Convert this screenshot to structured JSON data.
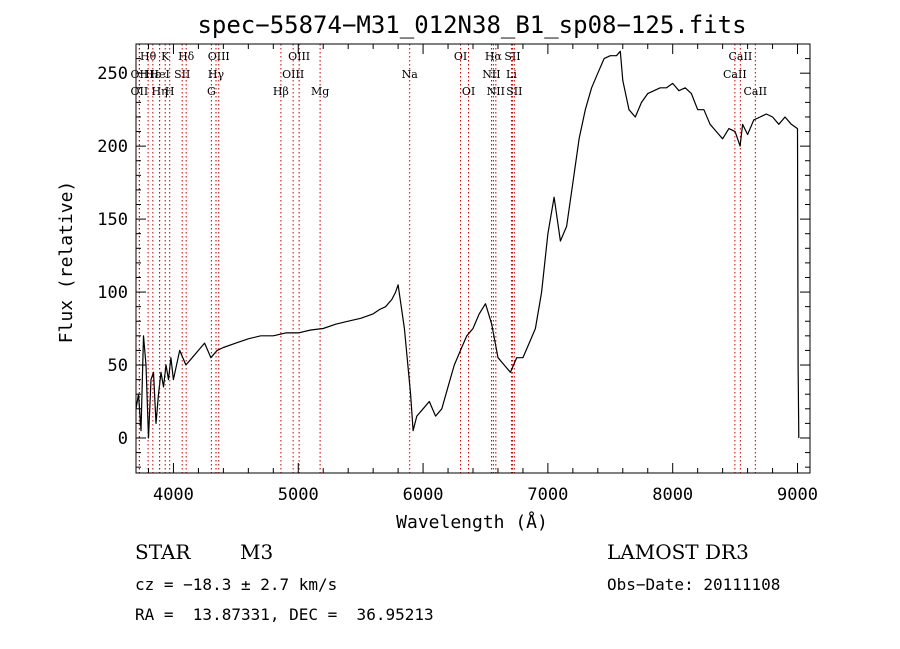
{
  "chart_data": {
    "type": "line",
    "title": "spec−55874−M31_012N38_B1_sp08−125.fits",
    "xlabel": "Wavelength (Å)",
    "ylabel": "Flux (relative)",
    "xlim": [
      3700,
      9100
    ],
    "ylim": [
      -24,
      270
    ],
    "x_ticks": [
      4000,
      5000,
      6000,
      7000,
      8000,
      9000
    ],
    "y_ticks": [
      0,
      50,
      100,
      150,
      200,
      250
    ],
    "grid": false,
    "series": [
      {
        "color": "#000000",
        "x": [
          3700,
          3720,
          3740,
          3760,
          3780,
          3800,
          3820,
          3840,
          3860,
          3880,
          3900,
          3920,
          3940,
          3960,
          3980,
          4000,
          4050,
          4100,
          4150,
          4200,
          4250,
          4300,
          4350,
          4400,
          4500,
          4600,
          4700,
          4800,
          4900,
          5000,
          5100,
          5200,
          5300,
          5400,
          5500,
          5600,
          5650,
          5700,
          5750,
          5780,
          5800,
          5850,
          5900,
          5920,
          5950,
          6000,
          6050,
          6100,
          6150,
          6200,
          6250,
          6300,
          6350,
          6400,
          6450,
          6500,
          6550,
          6600,
          6650,
          6700,
          6750,
          6800,
          6850,
          6900,
          6950,
          7000,
          7050,
          7100,
          7150,
          7200,
          7250,
          7300,
          7350,
          7400,
          7450,
          7500,
          7550,
          7580,
          7600,
          7650,
          7700,
          7750,
          7800,
          7850,
          7900,
          7950,
          8000,
          8050,
          8100,
          8150,
          8200,
          8250,
          8300,
          8350,
          8400,
          8450,
          8500,
          8540,
          8560,
          8600,
          8650,
          8700,
          8750,
          8800,
          8850,
          8900,
          8950,
          9000,
          9005,
          9010
        ],
        "values": [
          20,
          30,
          5,
          70,
          50,
          0,
          40,
          45,
          10,
          30,
          45,
          35,
          50,
          40,
          55,
          40,
          60,
          50,
          55,
          60,
          65,
          55,
          60,
          62,
          65,
          68,
          70,
          70,
          72,
          72,
          74,
          75,
          78,
          80,
          82,
          85,
          88,
          90,
          95,
          100,
          105,
          75,
          30,
          5,
          15,
          20,
          25,
          15,
          20,
          35,
          50,
          60,
          70,
          75,
          85,
          92,
          78,
          55,
          50,
          45,
          55,
          55,
          65,
          75,
          100,
          140,
          165,
          135,
          145,
          175,
          205,
          225,
          240,
          250,
          260,
          262,
          262,
          265,
          245,
          225,
          220,
          230,
          236,
          238,
          240,
          240,
          243,
          238,
          240,
          236,
          225,
          225,
          215,
          210,
          205,
          212,
          210,
          200,
          215,
          208,
          218,
          220,
          222,
          220,
          215,
          220,
          215,
          212,
          50,
          0
        ]
      }
    ],
    "line_markers": [
      {
        "label": "Hθ",
        "x": 3797,
        "row": 0
      },
      {
        "label": "OII",
        "x": 3727,
        "row": 1
      },
      {
        "label": "OII",
        "x": 3727,
        "row": 2
      },
      {
        "label": "Hε",
        "x": 3835,
        "row": 1
      },
      {
        "label": "Hη",
        "x": 3889,
        "row": 2
      },
      {
        "label": "K",
        "x": 3934,
        "row": 0
      },
      {
        "label": "H",
        "x": 3970,
        "row": 2
      },
      {
        "label": "HeI",
        "x": 3889,
        "row": 1
      },
      {
        "label": "SII",
        "x": 4070,
        "row": 1
      },
      {
        "label": "Hδ",
        "x": 4102,
        "row": 0
      },
      {
        "label": "OIII",
        "x": 4363,
        "row": 0
      },
      {
        "label": "Hγ",
        "x": 4341,
        "row": 1
      },
      {
        "label": "G",
        "x": 4304,
        "row": 2
      },
      {
        "label": "Hβ",
        "x": 4861,
        "row": 2
      },
      {
        "label": "OIII",
        "x": 5007,
        "row": 0
      },
      {
        "label": "OIII",
        "x": 4959,
        "row": 1
      },
      {
        "label": "Mg",
        "x": 5175,
        "row": 2
      },
      {
        "label": "Na",
        "x": 5893,
        "row": 1
      },
      {
        "label": "OI",
        "x": 6300,
        "row": 0
      },
      {
        "label": "OI",
        "x": 6364,
        "row": 2
      },
      {
        "label": "Hα",
        "x": 6563,
        "row": 0
      },
      {
        "label": "NII",
        "x": 6548,
        "row": 1
      },
      {
        "label": "NII",
        "x": 6583,
        "row": 2
      },
      {
        "label": "SII",
        "x": 6716,
        "row": 0
      },
      {
        "label": "Li",
        "x": 6708,
        "row": 1
      },
      {
        "label": "SII",
        "x": 6731,
        "row": 2
      },
      {
        "label": "CaII",
        "x": 8542,
        "row": 0
      },
      {
        "label": "CaII",
        "x": 8498,
        "row": 1
      },
      {
        "label": "CaII",
        "x": 8662,
        "row": 2
      }
    ]
  },
  "info": {
    "class": "STAR",
    "subclass": "M3",
    "survey": "LAMOST DR3",
    "cz": "cz = −18.3 ± 2.7 km/s",
    "obs_date": "Obs−Date: 20111108",
    "coords": "RA =  13.87331, DEC =  36.95213"
  }
}
